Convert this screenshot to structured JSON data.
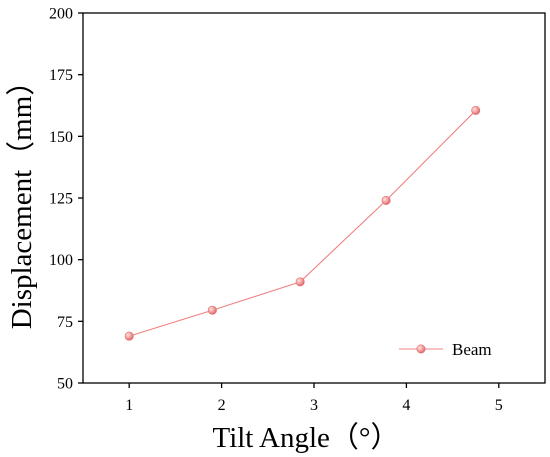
{
  "chart_data": {
    "type": "line",
    "xlabel": "Tilt Angle（°）",
    "ylabel": "Displacement（mm）",
    "xlim": [
      0.5,
      5.5
    ],
    "ylim": [
      50,
      200
    ],
    "x_ticks": [
      1,
      2,
      3,
      4,
      5
    ],
    "y_ticks": [
      50,
      75,
      100,
      125,
      150,
      175,
      200
    ],
    "grid": false,
    "legend_position": "bottom-right",
    "series": [
      {
        "name": "Beam",
        "color": "#f08080",
        "marker": "circle",
        "x": [
          1.0,
          1.9,
          2.85,
          3.78,
          4.75
        ],
        "y": [
          69,
          79.5,
          91,
          124,
          160.5
        ]
      }
    ]
  }
}
